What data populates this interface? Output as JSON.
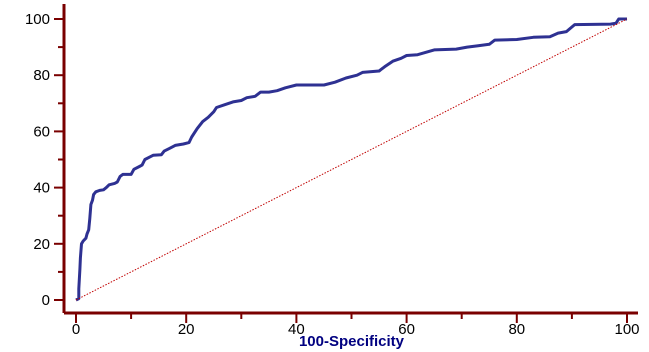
{
  "chart_data": {
    "type": "line",
    "title": "",
    "xlabel": "100-Specificity",
    "ylabel": "",
    "xlim": [
      0,
      100
    ],
    "ylim": [
      0,
      100
    ],
    "x_ticks": [
      0,
      20,
      40,
      60,
      80,
      100
    ],
    "y_ticks": [
      0,
      20,
      40,
      60,
      80,
      100
    ],
    "x_tick_labels": [
      "0",
      "20",
      "40",
      "60",
      "80",
      "100"
    ],
    "y_tick_labels": [
      "0",
      "20",
      "40",
      "60",
      "80",
      "100"
    ],
    "grid": false,
    "series": [
      {
        "role": "roc-curve",
        "color": "#2e3192",
        "points": [
          [
            0.0,
            0.0
          ],
          [
            0.5,
            0.5
          ],
          [
            0.5,
            4.0
          ],
          [
            0.7,
            11.0
          ],
          [
            0.8,
            15.0
          ],
          [
            1.0,
            20.0
          ],
          [
            1.3,
            21.0
          ],
          [
            1.8,
            22.0
          ],
          [
            2.0,
            23.5
          ],
          [
            2.3,
            25.0
          ],
          [
            2.5,
            29.0
          ],
          [
            2.7,
            34.0
          ],
          [
            3.0,
            35.5
          ],
          [
            3.2,
            37.5
          ],
          [
            3.6,
            38.5
          ],
          [
            4.3,
            39.0
          ],
          [
            5.0,
            39.2
          ],
          [
            5.5,
            40.0
          ],
          [
            6.0,
            41.0
          ],
          [
            7.0,
            41.5
          ],
          [
            7.5,
            42.0
          ],
          [
            8.0,
            44.0
          ],
          [
            8.5,
            44.7
          ],
          [
            10.0,
            44.7
          ],
          [
            10.5,
            46.5
          ],
          [
            11.5,
            47.5
          ],
          [
            12.0,
            48.0
          ],
          [
            12.5,
            50.0
          ],
          [
            13.5,
            51.0
          ],
          [
            14.0,
            51.5
          ],
          [
            15.5,
            51.7
          ],
          [
            16.0,
            53.0
          ],
          [
            17.0,
            54.0
          ],
          [
            18.0,
            55.0
          ],
          [
            19.5,
            55.5
          ],
          [
            20.5,
            56.0
          ],
          [
            21.0,
            58.0
          ],
          [
            22.0,
            61.0
          ],
          [
            23.0,
            63.5
          ],
          [
            24.0,
            65.0
          ],
          [
            25.0,
            67.0
          ],
          [
            25.5,
            68.5
          ],
          [
            27.0,
            69.5
          ],
          [
            28.5,
            70.5
          ],
          [
            30.0,
            71.0
          ],
          [
            31.0,
            72.0
          ],
          [
            32.5,
            72.5
          ],
          [
            33.5,
            74.0
          ],
          [
            35.0,
            74.0
          ],
          [
            36.5,
            74.5
          ],
          [
            38.0,
            75.5
          ],
          [
            40.0,
            76.5
          ],
          [
            42.0,
            76.5
          ],
          [
            45.0,
            76.5
          ],
          [
            47.0,
            77.5
          ],
          [
            49.0,
            79.0
          ],
          [
            51.0,
            80.0
          ],
          [
            52.0,
            81.0
          ],
          [
            55.0,
            81.5
          ],
          [
            56.0,
            83.0
          ],
          [
            57.5,
            85.0
          ],
          [
            59.0,
            86.0
          ],
          [
            60.0,
            87.0
          ],
          [
            62.0,
            87.3
          ],
          [
            65.0,
            89.0
          ],
          [
            69.0,
            89.3
          ],
          [
            71.0,
            90.0
          ],
          [
            73.0,
            90.5
          ],
          [
            75.0,
            91.0
          ],
          [
            76.0,
            92.5
          ],
          [
            80.0,
            92.7
          ],
          [
            83.0,
            93.5
          ],
          [
            86.0,
            93.7
          ],
          [
            87.5,
            95.0
          ],
          [
            89.0,
            95.5
          ],
          [
            90.5,
            98.0
          ],
          [
            97.0,
            98.2
          ],
          [
            98.0,
            98.5
          ],
          [
            98.5,
            100.0
          ],
          [
            100.0,
            100.0
          ]
        ]
      },
      {
        "role": "reference-diagonal",
        "color": "#c00000",
        "dashed": true,
        "points": [
          [
            0,
            0
          ],
          [
            100,
            100
          ]
        ]
      }
    ],
    "colors": {
      "axis": "#7a0000",
      "axis_title": "#000080",
      "tick_text": "#000000"
    }
  }
}
